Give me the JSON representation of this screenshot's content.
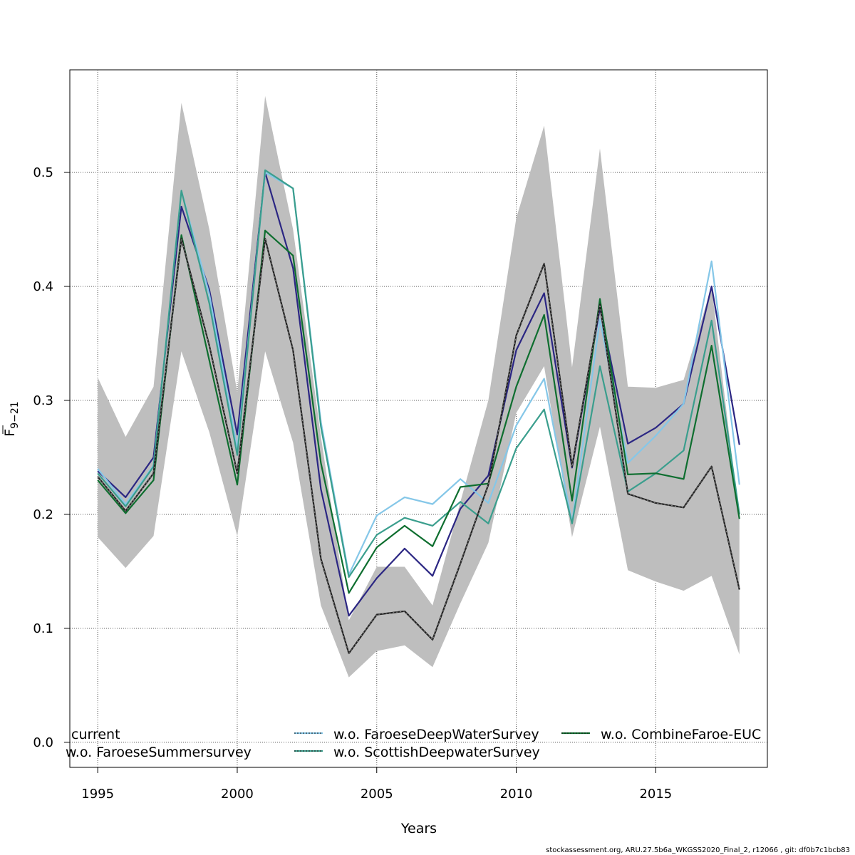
{
  "chart_data": {
    "type": "line",
    "xlabel": "Years",
    "ylabel_main": "F",
    "ylabel_sub": "9−21",
    "xlim": [
      1994,
      2019
    ],
    "ylim": [
      -0.022,
      0.59
    ],
    "xticks": [
      "1995",
      "2000",
      "2005",
      "2010",
      "2015"
    ],
    "yticks": [
      "0.0",
      "0.1",
      "0.2",
      "0.3",
      "0.4",
      "0.5"
    ],
    "grid": true,
    "x": [
      1995,
      1996,
      1997,
      1998,
      1999,
      2000,
      2001,
      2002,
      2003,
      2004,
      2005,
      2006,
      2007,
      2008,
      2009,
      2010,
      2011,
      2012,
      2013,
      2014,
      2015,
      2016,
      2017,
      2018
    ],
    "band": {
      "lower": [
        0.18,
        0.153,
        0.181,
        0.343,
        0.272,
        0.181,
        0.343,
        0.263,
        0.12,
        0.057,
        0.08,
        0.085,
        0.066,
        0.122,
        0.175,
        0.289,
        0.33,
        0.18,
        0.277,
        0.151,
        0.141,
        0.133,
        0.146,
        0.077
      ],
      "upper": [
        0.32,
        0.268,
        0.312,
        0.561,
        0.45,
        0.307,
        0.567,
        0.45,
        0.268,
        0.107,
        0.154,
        0.154,
        0.12,
        0.211,
        0.3,
        0.46,
        0.541,
        0.329,
        0.521,
        0.312,
        0.311,
        0.318,
        0.4,
        0.195
      ]
    },
    "series": [
      {
        "name": "current",
        "color": "#222222",
        "dashed": true,
        "values": [
          0.233,
          0.203,
          0.236,
          0.442,
          0.348,
          0.236,
          0.442,
          0.344,
          0.161,
          0.078,
          0.112,
          0.115,
          0.09,
          0.157,
          0.226,
          0.357,
          0.42,
          0.242,
          0.384,
          0.218,
          0.21,
          0.206,
          0.242,
          0.134
        ]
      },
      {
        "name": "w.o. FaroeseSummersurvey",
        "color": "#2b2683",
        "dashed": false,
        "values": [
          0.238,
          0.215,
          0.25,
          0.47,
          0.397,
          0.27,
          0.5,
          0.416,
          0.222,
          0.111,
          0.144,
          0.17,
          0.146,
          0.205,
          0.234,
          0.344,
          0.394,
          0.241,
          0.381,
          0.262,
          0.276,
          0.297,
          0.4,
          0.261
        ]
      },
      {
        "name": "w.o. FaroeseDeepWaterSurvey",
        "color": "#85c7e8",
        "dashed": false,
        "values": [
          0.24,
          0.209,
          0.243,
          0.484,
          0.393,
          0.257,
          0.5,
          0.486,
          0.281,
          0.147,
          0.199,
          0.215,
          0.209,
          0.231,
          0.21,
          0.278,
          0.319,
          0.193,
          0.371,
          0.245,
          0.269,
          0.297,
          0.422,
          0.226
        ]
      },
      {
        "name": "w.o. ScottishDeepwaterSurvey",
        "color": "#3a9e8d",
        "dashed": false,
        "values": [
          0.236,
          0.207,
          0.242,
          0.484,
          0.385,
          0.252,
          0.502,
          0.486,
          0.277,
          0.145,
          0.182,
          0.197,
          0.19,
          0.211,
          0.192,
          0.258,
          0.292,
          0.192,
          0.33,
          0.22,
          0.236,
          0.256,
          0.37,
          0.2
        ]
      },
      {
        "name": "w.o. CombineFaroe-EUC",
        "color": "#0e6e2f",
        "dashed": false,
        "values": [
          0.23,
          0.201,
          0.23,
          0.445,
          0.335,
          0.226,
          0.449,
          0.427,
          0.245,
          0.131,
          0.171,
          0.19,
          0.172,
          0.224,
          0.227,
          0.312,
          0.375,
          0.212,
          0.389,
          0.235,
          0.236,
          0.231,
          0.348,
          0.196
        ]
      }
    ],
    "legend": {
      "placement": "bottom",
      "entries": [
        {
          "label": "current",
          "col": 0,
          "row": 0,
          "line_color": null
        },
        {
          "label": "w.o. FaroeseSummersurvey",
          "col": 0,
          "row": 1,
          "line_color": null
        },
        {
          "label": "w.o. FaroeseDeepWaterSurvey",
          "col": 1,
          "row": 0,
          "line_color": "#85c7e8"
        },
        {
          "label": "w.o. ScottishDeepwaterSurvey",
          "col": 1,
          "row": 1,
          "line_color": "#3a9e8d"
        },
        {
          "label": "w.o. CombineFaroe-EUC",
          "col": 2,
          "row": 0,
          "line_color": "#0e6e2f"
        }
      ]
    }
  },
  "footer": "stockassessment.org, ARU.27.5b6a_WKGSS2020_Final_2, r12066 , git: df0b7c1bcb83"
}
